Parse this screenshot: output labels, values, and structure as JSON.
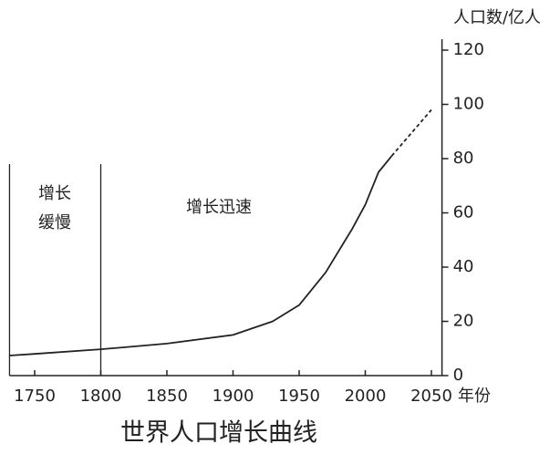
{
  "chart_data": {
    "type": "line",
    "title": "世界人口增长曲线",
    "y_label": "人口数/亿人",
    "x_label": "年份",
    "annotations": [
      {
        "lines": [
          "增长",
          "缓慢"
        ]
      },
      {
        "lines": [
          "增长迅速"
        ]
      }
    ],
    "dividers": [
      1731,
      1800
    ],
    "x": [
      1731,
      1750,
      1800,
      1850,
      1900,
      1930,
      1950,
      1970,
      1990,
      2000,
      2010,
      2020,
      2050
    ],
    "series": [
      {
        "color": "#222222",
        "dashed": false,
        "values": [
          7.4,
          8,
          9.7,
          11.8,
          15,
          20,
          26,
          38,
          54,
          63,
          75,
          81,
          null
        ]
      },
      {
        "color": "#222222",
        "dashed": true,
        "values": [
          null,
          null,
          null,
          null,
          null,
          null,
          null,
          null,
          null,
          null,
          null,
          81,
          98
        ]
      }
    ],
    "xlim": [
      1731,
      2058
    ],
    "xticks": [
      1750,
      1800,
      1850,
      1900,
      1950,
      2000,
      2050
    ],
    "ylim": [
      0,
      120
    ],
    "yticks": [
      0,
      20,
      40,
      60,
      80,
      100,
      120
    ],
    "y_axis_side": "right",
    "grid": false
  }
}
